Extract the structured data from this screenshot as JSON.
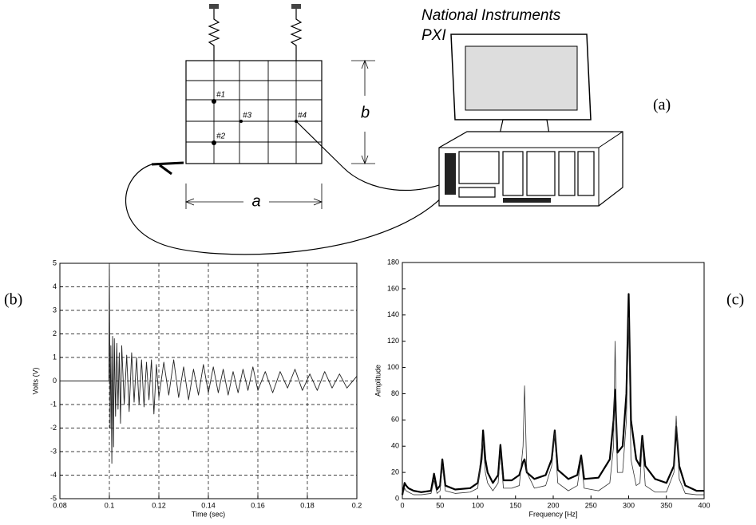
{
  "diagram": {
    "title_lines": [
      "National Instruments",
      "PXI"
    ],
    "panel_labels": [
      "(a)",
      "(b)",
      "(c)"
    ],
    "points": [
      "#1",
      "#2",
      "#3",
      "#4"
    ],
    "dims": [
      "a",
      "b"
    ]
  },
  "chart_data": [
    {
      "type": "line",
      "xlabel": "Time (sec)",
      "ylabel": "Volts (V)",
      "x": [
        0.08,
        0.09,
        0.0998,
        0.1,
        0.1003,
        0.1006,
        0.101,
        0.1013,
        0.1017,
        0.102,
        0.1025,
        0.103,
        0.1035,
        0.104,
        0.1045,
        0.105,
        0.106,
        0.107,
        0.108,
        0.109,
        0.11,
        0.111,
        0.112,
        0.113,
        0.114,
        0.115,
        0.116,
        0.117,
        0.118,
        0.119,
        0.12,
        0.122,
        0.124,
        0.126,
        0.128,
        0.13,
        0.132,
        0.134,
        0.136,
        0.138,
        0.14,
        0.142,
        0.144,
        0.146,
        0.148,
        0.15,
        0.152,
        0.154,
        0.156,
        0.158,
        0.16,
        0.163,
        0.166,
        0.169,
        0.172,
        0.175,
        0.178,
        0.181,
        0.184,
        0.187,
        0.19,
        0.193,
        0.196,
        0.2
      ],
      "series": [
        {
          "color": "#222222",
          "line_width": 0.9,
          "values": [
            0,
            0,
            0,
            4.9,
            -2,
            1.5,
            -3.5,
            1.9,
            -2.8,
            1.8,
            -1.5,
            1.6,
            -1.2,
            1.2,
            -1.8,
            1.5,
            -1,
            1.1,
            -1.3,
            1.2,
            -0.9,
            1,
            -1,
            0.9,
            -1.1,
            0.8,
            -0.8,
            0.9,
            -1.4,
            0.7,
            -0.7,
            0.8,
            -0.6,
            0.9,
            -0.7,
            0.6,
            -0.8,
            0.5,
            -0.6,
            0.7,
            -0.5,
            0.6,
            -0.5,
            0.5,
            -0.6,
            0.4,
            -0.5,
            0.5,
            -0.4,
            0.6,
            -0.4,
            0.4,
            -0.5,
            0.4,
            -0.3,
            0.5,
            -0.4,
            0.3,
            -0.4,
            0.4,
            -0.3,
            0.3,
            -0.3,
            0.2
          ]
        }
      ],
      "xlim": [
        0.08,
        0.2
      ],
      "xticks": [
        0.08,
        0.1,
        0.12,
        0.14,
        0.16,
        0.18,
        0.2
      ],
      "ylim": [
        -5,
        5
      ],
      "yticks": [
        -5,
        -4,
        -3,
        -2,
        -1,
        0,
        1,
        2,
        3,
        4,
        5
      ],
      "grid": true
    },
    {
      "type": "line",
      "xlabel": "Frequency [Hz]",
      "ylabel": "Amplitude",
      "x": [
        0,
        3,
        5,
        8,
        15,
        25,
        38,
        42,
        46,
        50,
        53,
        57,
        70,
        90,
        100,
        105,
        107,
        110,
        113,
        120,
        127,
        130,
        134,
        145,
        155,
        160,
        162,
        165,
        175,
        190,
        198,
        202,
        206,
        220,
        232,
        237,
        241,
        260,
        275,
        280,
        282,
        285,
        292,
        297,
        300,
        303,
        310,
        315,
        318,
        322,
        335,
        350,
        360,
        363,
        367,
        375,
        390,
        400
      ],
      "series": [
        {
          "color": "#000000",
          "line_width": 2.2,
          "values": [
            3,
            12,
            10,
            8,
            6,
            5,
            6,
            19,
            7,
            10,
            30,
            10,
            7,
            8,
            12,
            30,
            52,
            30,
            20,
            12,
            18,
            41,
            14,
            14,
            18,
            28,
            30,
            20,
            15,
            18,
            30,
            52,
            22,
            15,
            18,
            33,
            15,
            16,
            30,
            60,
            83,
            35,
            40,
            80,
            156,
            60,
            30,
            25,
            48,
            25,
            15,
            12,
            25,
            55,
            25,
            10,
            6,
            6
          ]
        },
        {
          "color": "#333333",
          "line_width": 0.8,
          "values": [
            2,
            8,
            6,
            5,
            3,
            3,
            4,
            14,
            4,
            6,
            25,
            6,
            4,
            5,
            8,
            38,
            44,
            20,
            12,
            6,
            12,
            35,
            8,
            8,
            10,
            40,
            86,
            20,
            8,
            10,
            25,
            50,
            12,
            6,
            10,
            30,
            8,
            6,
            12,
            40,
            120,
            20,
            20,
            60,
            138,
            30,
            10,
            12,
            45,
            10,
            5,
            5,
            20,
            63,
            15,
            4,
            3,
            3
          ]
        }
      ],
      "xlim": [
        0,
        400
      ],
      "xticks": [
        0,
        50,
        100,
        150,
        200,
        250,
        300,
        350,
        400
      ],
      "ylim": [
        0,
        180
      ],
      "yticks": [
        0,
        20,
        40,
        60,
        80,
        100,
        120,
        140,
        160,
        180
      ],
      "grid": false
    }
  ]
}
